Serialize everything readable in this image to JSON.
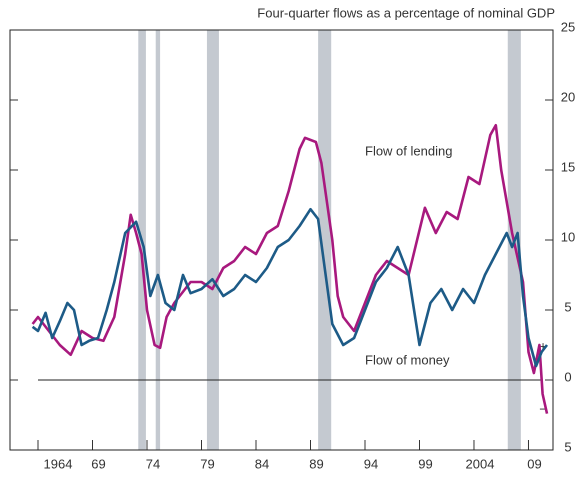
{
  "chart_data": {
    "type": "line",
    "title": "Four-quarter flows as a percentage of nominal GDP",
    "xlim": [
      1961.43,
      2011.25
    ],
    "xticks": [
      {
        "value": 1964,
        "label": "1964"
      },
      {
        "value": 1969,
        "label": "69"
      },
      {
        "value": 1974,
        "label": "74"
      },
      {
        "value": 1979,
        "label": "79"
      },
      {
        "value": 1984,
        "label": "84"
      },
      {
        "value": 1989,
        "label": "89"
      },
      {
        "value": 1994,
        "label": "94"
      },
      {
        "value": 1999,
        "label": "99"
      },
      {
        "value": 2004,
        "label": "2004"
      },
      {
        "value": 2009,
        "label": "09"
      }
    ],
    "ylim": [
      -5,
      25
    ],
    "yticks": [
      25,
      20,
      15,
      10,
      5,
      0,
      {
        "value": -5,
        "label": "5"
      }
    ],
    "sign_labels": [
      "+",
      "−"
    ],
    "shaded_periods": [
      [
        1973.2,
        1973.9
      ],
      [
        1974.8,
        1975.2
      ],
      [
        1979.5,
        1980.6
      ],
      [
        1989.7,
        1990.9
      ],
      [
        2007.1,
        2008.3
      ]
    ],
    "series": [
      {
        "name": "Flow of lending",
        "color": "#a8197e",
        "x": [
          1963.5,
          1964,
          1965,
          1966,
          1967,
          1968,
          1969,
          1970,
          1971,
          1972,
          1972.5,
          1973,
          1973.5,
          1974,
          1974.7,
          1975.2,
          1975.8,
          1976.5,
          1977,
          1978,
          1979,
          1980,
          1981,
          1982,
          1983,
          1984,
          1985,
          1986,
          1987,
          1988,
          1988.5,
          1989.5,
          1990,
          1991,
          1991.5,
          1992,
          1993,
          1994,
          1995,
          1996,
          1997,
          1998,
          1999.5,
          2000.5,
          2001.5,
          2002.5,
          2003.5,
          2004.5,
          2005.5,
          2006,
          2006.5,
          2007.5,
          2008.5,
          2009,
          2009.5,
          2010,
          2010.3,
          2010.7
        ],
        "values": [
          4.0,
          4.5,
          3.5,
          2.5,
          1.8,
          3.5,
          3.0,
          2.8,
          4.5,
          9.0,
          11.8,
          10.5,
          9.0,
          5.0,
          2.5,
          2.3,
          4.5,
          5.5,
          6.0,
          7.0,
          7.0,
          6.5,
          8.0,
          8.5,
          9.5,
          9.0,
          10.5,
          11.0,
          13.5,
          16.5,
          17.3,
          17.0,
          15.5,
          10.0,
          6.0,
          4.5,
          3.5,
          5.5,
          7.5,
          8.5,
          8.0,
          7.5,
          12.3,
          10.5,
          12.0,
          11.5,
          14.5,
          14.0,
          17.5,
          18.2,
          15.0,
          10.5,
          7.0,
          2.0,
          0.5,
          2.5,
          -1.0,
          -2.4
        ]
      },
      {
        "name": "Flow of money",
        "color": "#1d5b87",
        "x": [
          1963.5,
          1964,
          1964.7,
          1965.3,
          1966,
          1966.7,
          1967.3,
          1968,
          1968.7,
          1969.5,
          1970.3,
          1971,
          1972,
          1973,
          1973.7,
          1974.3,
          1975,
          1975.7,
          1976.5,
          1977.3,
          1978,
          1979,
          1980,
          1981,
          1982,
          1983,
          1984,
          1985,
          1986,
          1987,
          1988,
          1989,
          1989.7,
          1990.3,
          1991,
          1992,
          1993,
          1994,
          1995,
          1996,
          1997,
          1998,
          1999,
          2000,
          2001,
          2002,
          2003,
          2004,
          2005,
          2006,
          2007,
          2007.5,
          2008,
          2008.5,
          2009,
          2009.7,
          2010.2,
          2010.7
        ],
        "values": [
          3.8,
          3.5,
          4.8,
          3.0,
          4.2,
          5.5,
          5.0,
          2.5,
          2.8,
          3.0,
          5.0,
          7.0,
          10.5,
          11.3,
          9.5,
          6.0,
          7.5,
          5.5,
          5.0,
          7.5,
          6.2,
          6.5,
          7.2,
          6.0,
          6.5,
          7.5,
          7.0,
          8.0,
          9.5,
          10.0,
          11.0,
          12.2,
          11.5,
          8.0,
          4.0,
          2.5,
          3.0,
          5.0,
          7.0,
          8.0,
          9.5,
          7.5,
          2.5,
          5.5,
          6.5,
          5.0,
          6.5,
          5.5,
          7.5,
          9.0,
          10.5,
          9.5,
          10.5,
          6.0,
          3.0,
          1.0,
          2.0,
          2.5
        ]
      }
    ]
  }
}
